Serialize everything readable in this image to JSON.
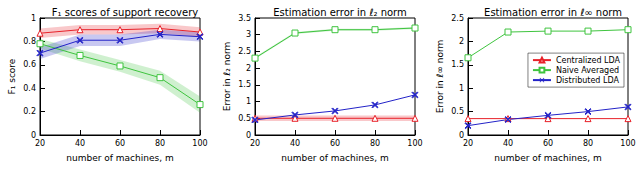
{
  "chart_data": [
    {
      "type": "line",
      "title": "F₁ scores of support recovery",
      "x_label": "number of machines, m",
      "y_label": "F₁ score",
      "x": [
        20,
        40,
        60,
        80,
        100
      ],
      "xlim": [
        20,
        100
      ],
      "xticks": [
        20,
        40,
        60,
        80,
        100
      ],
      "ylim": [
        0,
        1
      ],
      "yticks": [
        0,
        0.2,
        0.4,
        0.6,
        0.8,
        1
      ],
      "grid": false,
      "series": [
        {
          "name": "Centralized LDA",
          "color": "#e8222a",
          "marker": "triangle",
          "values": [
            0.87,
            0.9,
            0.9,
            0.91,
            0.88
          ],
          "error": [
            0.04,
            0.04,
            0.04,
            0.04,
            0.04
          ]
        },
        {
          "name": "Naive Averaged",
          "color": "#3fc43f",
          "marker": "square",
          "values": [
            0.78,
            0.68,
            0.59,
            0.49,
            0.26
          ],
          "error": [
            0.04,
            0.05,
            0.05,
            0.06,
            0.07
          ]
        },
        {
          "name": "Distributed LDA",
          "color": "#2323c8",
          "marker": "x",
          "values": [
            0.7,
            0.81,
            0.81,
            0.86,
            0.84
          ],
          "error": [
            0.05,
            0.05,
            0.05,
            0.04,
            0.04
          ]
        }
      ]
    },
    {
      "type": "line",
      "title": "Estimation error in ℓ₂ norm",
      "x_label": "number of machines, m",
      "y_label": "Error in ℓ₂ norm",
      "x": [
        20,
        40,
        60,
        80,
        100
      ],
      "xlim": [
        20,
        100
      ],
      "xticks": [
        20,
        40,
        60,
        80,
        100
      ],
      "ylim": [
        0,
        3.5
      ],
      "yticks": [
        0,
        0.5,
        1,
        1.5,
        2,
        2.5,
        3,
        3.5
      ],
      "grid": false,
      "series": [
        {
          "name": "Centralized LDA",
          "color": "#e8222a",
          "marker": "triangle",
          "values": [
            0.5,
            0.5,
            0.5,
            0.5,
            0.5
          ],
          "error": [
            0.08,
            0.08,
            0.08,
            0.08,
            0.08
          ]
        },
        {
          "name": "Naive Averaged",
          "color": "#3fc43f",
          "marker": "square",
          "values": [
            2.3,
            3.05,
            3.15,
            3.15,
            3.2
          ],
          "error": [
            0.03,
            0.03,
            0.03,
            0.03,
            0.03
          ]
        },
        {
          "name": "Distributed LDA",
          "color": "#2323c8",
          "marker": "x",
          "values": [
            0.45,
            0.6,
            0.72,
            0.9,
            1.2
          ]
        }
      ]
    },
    {
      "type": "line",
      "title": "Estimation error in ℓ∞ norm",
      "x_label": "number of machines, m",
      "y_label": "Error in ℓ∞ norm",
      "x": [
        20,
        40,
        60,
        80,
        100
      ],
      "xlim": [
        20,
        100
      ],
      "xticks": [
        20,
        40,
        60,
        80,
        100
      ],
      "ylim": [
        0,
        2.5
      ],
      "yticks": [
        0,
        0.5,
        1,
        1.5,
        2,
        2.5
      ],
      "grid": false,
      "legend": "right",
      "series": [
        {
          "name": "Centralized LDA",
          "color": "#e8222a",
          "marker": "triangle",
          "values": [
            0.35,
            0.35,
            0.35,
            0.35,
            0.35
          ]
        },
        {
          "name": "Naive Averaged",
          "color": "#3fc43f",
          "marker": "square",
          "values": [
            1.65,
            2.2,
            2.22,
            2.22,
            2.25
          ]
        },
        {
          "name": "Distributed LDA",
          "color": "#2323c8",
          "marker": "x",
          "values": [
            0.2,
            0.33,
            0.42,
            0.5,
            0.6
          ]
        }
      ]
    }
  ]
}
